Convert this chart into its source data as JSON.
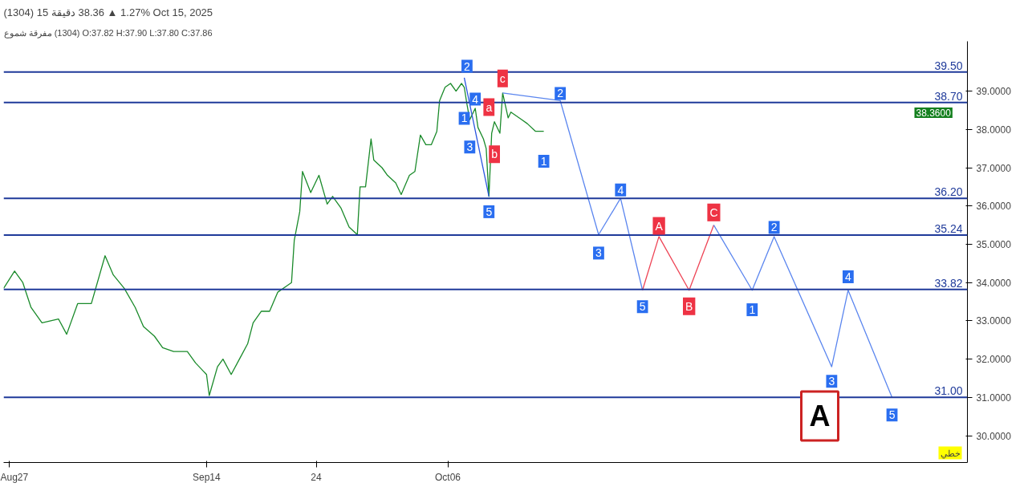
{
  "chart_data": {
    "type": "line",
    "title": "(1304)   15 دقيقة   38.36 ▲ 1.27%   Oct 15, 2025",
    "subtitle": "شموع مفرقة (1304)   O:37.82  H:37.90  L:37.80  C:37.86",
    "xlim": [
      "2025-08-26T12:00",
      "2025-11-22T09:00"
    ],
    "ylim": [
      29.3,
      40.3
    ],
    "xticks": [
      {
        "value": "2025-08-27",
        "label": "Aug27"
      },
      {
        "value": "2025-09-14",
        "label": "Sep14"
      },
      {
        "value": "2025-09-24",
        "label": "24"
      },
      {
        "value": "2025-10-06",
        "label": "Oct06"
      }
    ],
    "yticks": [
      {
        "value": 30,
        "label": "30.0000"
      },
      {
        "value": 31,
        "label": "31.0000"
      },
      {
        "value": 32,
        "label": "32.0000"
      },
      {
        "value": 33,
        "label": "33.0000"
      },
      {
        "value": 34,
        "label": "34.0000"
      },
      {
        "value": 35,
        "label": "35.0000"
      },
      {
        "value": 36,
        "label": "36.0000"
      },
      {
        "value": 37,
        "label": "37.0000"
      },
      {
        "value": 38,
        "label": "38.0000"
      },
      {
        "value": 39,
        "label": "39.0000"
      }
    ],
    "grid": false,
    "line_style": "solid",
    "marker": "none",
    "series": [
      {
        "color": "#1a8a2a",
        "x": [
          "2025-08-26T12:00",
          "2025-08-27T12:00",
          "2025-08-28T06:00",
          "2025-08-29T00:00",
          "2025-08-30T00:00",
          "2025-08-31T12:00",
          "2025-09-01T06:00",
          "2025-09-02T06:00",
          "2025-09-03T12:00",
          "2025-09-04T18:00",
          "2025-09-05T12:00",
          "2025-09-06T12:00",
          "2025-09-07T12:00",
          "2025-09-08T06:00",
          "2025-09-09T06:00",
          "2025-09-10T00:00",
          "2025-09-11T00:00",
          "2025-09-12T06:00",
          "2025-09-13T00:00",
          "2025-09-14T00:00",
          "2025-09-14T06:00",
          "2025-09-15T00:00",
          "2025-09-15T12:00",
          "2025-09-16T06:00",
          "2025-09-17T00:00",
          "2025-09-17T18:00",
          "2025-09-18T06:00",
          "2025-09-19T00:00",
          "2025-09-19T18:00",
          "2025-09-20T12:00",
          "2025-09-21T06:00",
          "2025-09-21T18:00",
          "2025-09-22T00:00",
          "2025-09-22T12:00",
          "2025-09-22T18:00",
          "2025-09-23T12:00",
          "2025-09-24T06:00",
          "2025-09-25T00:00",
          "2025-09-25T12:00",
          "2025-09-26T06:00",
          "2025-09-27T00:00",
          "2025-09-27T18:00",
          "2025-09-28T00:00",
          "2025-09-28T12:00",
          "2025-09-29T00:00",
          "2025-09-29T06:00",
          "2025-09-30T00:00",
          "2025-09-30T12:00",
          "2025-10-01T06:00",
          "2025-10-01T18:00",
          "2025-10-02T12:00",
          "2025-10-03T00:00",
          "2025-10-03T12:00",
          "2025-10-04T00:00",
          "2025-10-04T12:00",
          "2025-10-05T00:00",
          "2025-10-05T06:00",
          "2025-10-05T18:00",
          "2025-10-06T06:00",
          "2025-10-06T18:00",
          "2025-10-07T06:00",
          "2025-10-07T12:00",
          "2025-10-07T18:00",
          "2025-10-08T00:00",
          "2025-10-08T12:00",
          "2025-10-08T18:00",
          "2025-10-09T06:00",
          "2025-10-09T12:00",
          "2025-10-09T18:00",
          "2025-10-10T00:00",
          "2025-10-10T06:00",
          "2025-10-10T18:00",
          "2025-10-11T00:00",
          "2025-10-11T12:00",
          "2025-10-11T18:00",
          "2025-10-12T06:00",
          "2025-10-12T18:00",
          "2025-10-13T06:00",
          "2025-10-14T00:00",
          "2025-10-14T18:00"
        ],
        "values": [
          33.85,
          34.3,
          34.0,
          33.35,
          32.95,
          33.05,
          32.65,
          33.45,
          33.45,
          34.7,
          34.2,
          33.85,
          33.35,
          32.85,
          32.6,
          32.3,
          32.2,
          32.2,
          31.9,
          31.6,
          31.05,
          31.8,
          32.0,
          31.6,
          32.0,
          32.4,
          32.95,
          33.25,
          33.25,
          33.75,
          33.9,
          34.0,
          35.1,
          35.85,
          36.9,
          36.35,
          36.8,
          36.05,
          36.25,
          35.95,
          35.45,
          35.25,
          36.5,
          36.5,
          37.75,
          37.2,
          37.0,
          36.8,
          36.6,
          36.3,
          36.8,
          36.9,
          37.85,
          37.6,
          37.6,
          37.95,
          38.75,
          39.1,
          39.2,
          39.0,
          39.2,
          39.1,
          38.65,
          38.25,
          38.55,
          38.05,
          37.75,
          37.5,
          36.25,
          37.9,
          38.2,
          37.9,
          38.95,
          38.3,
          38.45,
          38.35,
          38.25,
          38.15,
          37.95,
          37.95
        ]
      },
      {
        "color": "#2a55e0",
        "x": [
          "2025-10-07T12:00",
          "2025-10-09T18:00"
        ],
        "values": [
          39.35,
          36.25
        ]
      },
      {
        "color": "#5b86ef",
        "x": [
          "2025-10-11T00:00",
          "2025-10-16T06:00",
          "2025-10-19T18:00",
          "2025-10-21T18:00",
          "2025-10-23T18:00"
        ],
        "values": [
          38.95,
          38.75,
          35.25,
          36.2,
          33.8
        ]
      },
      {
        "color": "#ee4455",
        "x": [
          "2025-10-23T18:00",
          "2025-10-25T06:00",
          "2025-10-28T00:00",
          "2025-10-30T06:00"
        ],
        "values": [
          33.8,
          35.2,
          33.8,
          35.5
        ]
      },
      {
        "color": "#5b86ef",
        "x": [
          "2025-10-30T06:00",
          "2025-11-02T18:00",
          "2025-11-04T18:00",
          "2025-11-10T00:00",
          "2025-11-11T12:00",
          "2025-11-15T12:00"
        ],
        "values": [
          35.5,
          33.8,
          35.2,
          31.8,
          33.8,
          31.0
        ]
      }
    ],
    "ref_lines": [
      {
        "axis": "y",
        "value": 39.5,
        "label": "39.50",
        "color": "#1f3a9a"
      },
      {
        "axis": "y",
        "value": 38.7,
        "label": "38.70",
        "color": "#1f3a9a"
      },
      {
        "axis": "y",
        "value": 36.2,
        "label": "36.20",
        "color": "#1f3a9a"
      },
      {
        "axis": "y",
        "value": 35.24,
        "label": "35.24",
        "color": "#1f3a9a"
      },
      {
        "axis": "y",
        "value": 33.82,
        "label": "33.82",
        "color": "#1f3a9a"
      },
      {
        "axis": "y",
        "value": 31.0,
        "label": "31.00",
        "color": "#1f3a9a"
      }
    ],
    "annotations": [
      {
        "text": "2",
        "x": "2025-10-07T18:00",
        "y": 39.65
      },
      {
        "text": "1",
        "x": "2025-10-07T12:00",
        "y": 38.29
      },
      {
        "text": "4",
        "x": "2025-10-08T12:00",
        "y": 38.79
      },
      {
        "text": "3",
        "x": "2025-10-08T00:00",
        "y": 37.54
      },
      {
        "text": "5",
        "x": "2025-10-09T18:00",
        "y": 35.85
      },
      {
        "text": "a",
        "x": "2025-10-09T18:00",
        "y": 38.58
      },
      {
        "text": "b",
        "x": "2025-10-10T06:00",
        "y": 37.35
      },
      {
        "text": "c",
        "x": "2025-10-11T00:00",
        "y": 39.33
      },
      {
        "text": "2",
        "x": "2025-10-16T06:00",
        "y": 38.94
      },
      {
        "text": "1",
        "x": "2025-10-14T18:00",
        "y": 37.17
      },
      {
        "text": "4",
        "x": "2025-10-21T18:00",
        "y": 36.42
      },
      {
        "text": "3",
        "x": "2025-10-19T18:00",
        "y": 34.77
      },
      {
        "text": "A",
        "x": "2025-10-25T06:00",
        "y": 35.48
      },
      {
        "text": "C",
        "x": "2025-10-30T06:00",
        "y": 35.83
      },
      {
        "text": "2",
        "x": "2025-11-04T18:00",
        "y": 35.44
      },
      {
        "text": "5",
        "x": "2025-10-23T18:00",
        "y": 33.37
      },
      {
        "text": "B",
        "x": "2025-10-28T00:00",
        "y": 33.38
      },
      {
        "text": "1",
        "x": "2025-11-02T18:00",
        "y": 33.29
      },
      {
        "text": "4",
        "x": "2025-11-11T12:00",
        "y": 34.15
      },
      {
        "text": "3",
        "x": "2025-11-10T00:00",
        "y": 31.42
      },
      {
        "text": "5",
        "x": "2025-11-15T12:00",
        "y": 30.54
      },
      "38.3600",
      "A",
      "خطي"
    ]
  }
}
